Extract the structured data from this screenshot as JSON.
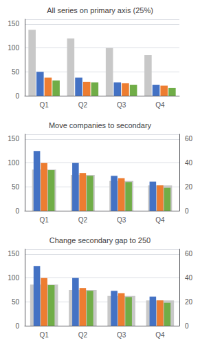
{
  "chart_data": [
    {
      "type": "bar",
      "title": "All series on primary axis (25%)",
      "categories": [
        "Q1",
        "Q2",
        "Q3",
        "Q4"
      ],
      "series": [
        {
          "color": "#c8c8c8",
          "values": [
            138,
            120,
            100,
            85
          ]
        },
        {
          "color": "#4472c4",
          "values": [
            50,
            38,
            28,
            23
          ]
        },
        {
          "color": "#ed7d31",
          "values": [
            38,
            29,
            26,
            21
          ]
        },
        {
          "color": "#70ad47",
          "values": [
            32,
            28,
            23,
            16
          ]
        }
      ],
      "ylim": [
        0,
        160
      ],
      "yticks": [
        0,
        50,
        100,
        150
      ],
      "grid": true
    },
    {
      "type": "bar",
      "title": "Move companies to secondary",
      "categories": [
        "Q1",
        "Q2",
        "Q3",
        "Q4"
      ],
      "series": [
        {
          "color": "#c8c8c8",
          "values": [
            34.5,
            30,
            25,
            21.25
          ],
          "axis": "y2"
        },
        {
          "color": "#4472c4",
          "values": [
            125,
            100,
            73,
            61
          ]
        },
        {
          "color": "#ed7d31",
          "values": [
            100,
            79,
            68,
            53
          ]
        },
        {
          "color": "#70ad47",
          "values": [
            85,
            73,
            60,
            48
          ]
        }
      ],
      "ylim": [
        0,
        160
      ],
      "yticks": [
        0,
        50,
        100,
        150
      ],
      "y2lim": [
        0,
        64
      ],
      "y2ticks": [
        0,
        20,
        40,
        60
      ],
      "grid": true
    },
    {
      "type": "bar",
      "title": "Change secondary gap to 250",
      "categories": [
        "Q1",
        "Q2",
        "Q3",
        "Q4"
      ],
      "series": [
        {
          "color": "#c8c8c8",
          "values": [
            34.5,
            30,
            25,
            21.25
          ],
          "axis": "y2"
        },
        {
          "color": "#4472c4",
          "values": [
            125,
            100,
            73,
            61
          ]
        },
        {
          "color": "#ed7d31",
          "values": [
            100,
            79,
            68,
            53
          ]
        },
        {
          "color": "#70ad47",
          "values": [
            85,
            73,
            60,
            48
          ]
        }
      ],
      "ylim": [
        0,
        160
      ],
      "yticks": [
        0,
        50,
        100,
        150
      ],
      "y2lim": [
        0,
        64
      ],
      "y2ticks": [
        0,
        20,
        40,
        60
      ],
      "grid": true
    }
  ]
}
